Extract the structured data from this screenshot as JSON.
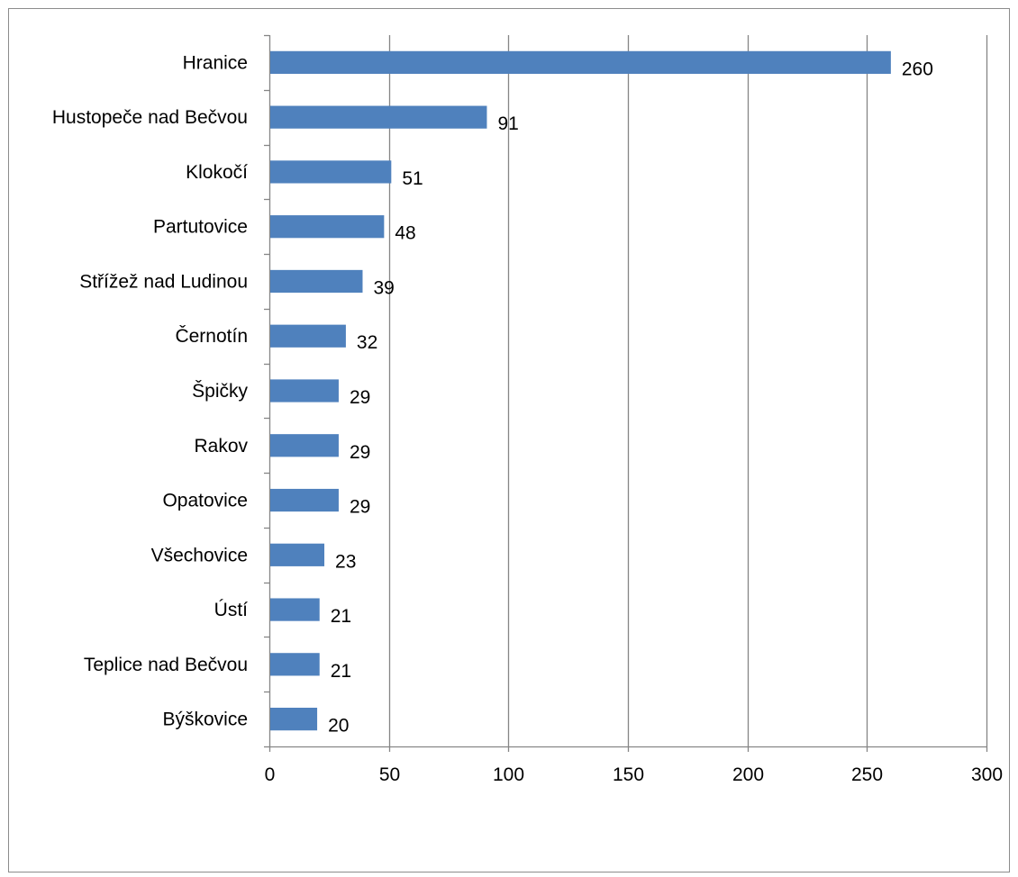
{
  "chart_data": {
    "type": "bar",
    "orientation": "horizontal",
    "title": "",
    "xlabel": "",
    "ylabel": "",
    "categories": [
      "Hranice",
      "Hustopeče nad Bečvou",
      "Klokočí",
      "Partutovice",
      "Střížež nad Ludinou",
      "Černotín",
      "Špičky",
      "Rakov",
      "Opatovice",
      "Všechovice",
      "Ústí",
      "Teplice nad Bečvou",
      "Býškovice"
    ],
    "values": [
      260,
      91,
      51,
      48,
      39,
      32,
      29,
      29,
      29,
      23,
      21,
      21,
      20
    ],
    "xlim": [
      0,
      300
    ],
    "x_ticks": [
      0,
      50,
      100,
      150,
      200,
      250,
      300
    ],
    "x_tick_labels": [
      "0",
      "50",
      "100",
      "150",
      "200",
      "250",
      "300"
    ],
    "grid": "vertical",
    "legend": "none",
    "data_labels": true,
    "colors": {
      "bar": "#4f81bd",
      "grid": "#868686",
      "axis": "#868686",
      "frame": "#8c8c8c",
      "text": "#000000"
    }
  }
}
